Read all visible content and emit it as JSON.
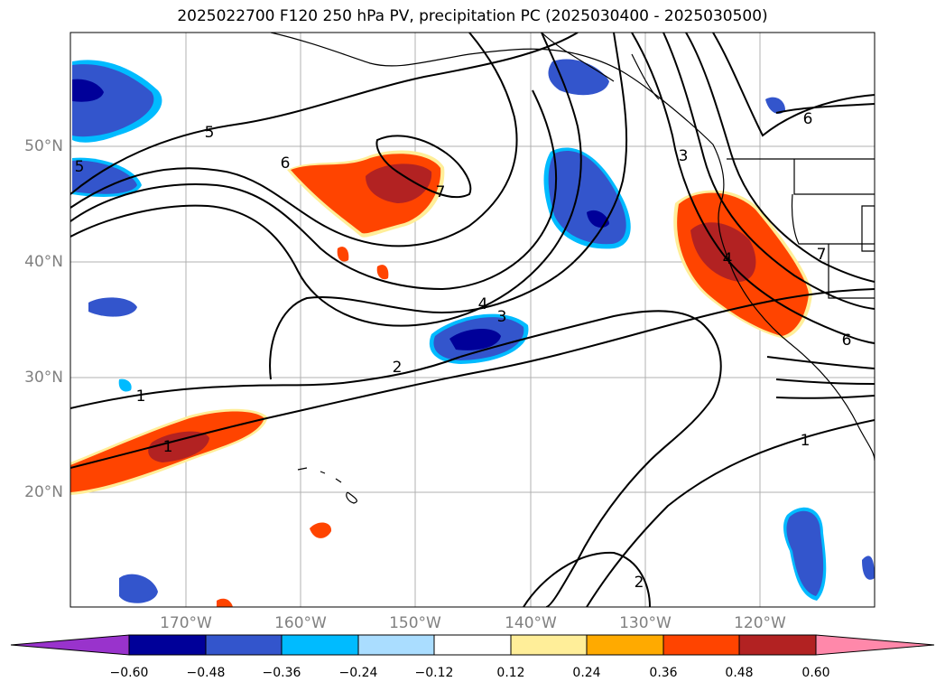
{
  "title": "2025022700 F120 250 hPa PV, precipitation PC (2025030400 - 2025030500)",
  "map": {
    "lat_ticks": [
      "50°N",
      "40°N",
      "30°N",
      "20°N"
    ],
    "lon_ticks": [
      "170°W",
      "160°W",
      "150°W",
      "140°W",
      "130°W",
      "120°W"
    ],
    "contour_labels": [
      "5",
      "6",
      "7",
      "4",
      "3",
      "2",
      "1",
      "1",
      "1",
      "2",
      "3",
      "4",
      "6",
      "7",
      "6",
      "5"
    ]
  },
  "colorbar": {
    "ticks": [
      "−0.60",
      "−0.48",
      "−0.36",
      "−0.24",
      "−0.12",
      "0.12",
      "0.24",
      "0.36",
      "0.48",
      "0.60"
    ],
    "colors": [
      "#9933cc",
      "#000099",
      "#3355cc",
      "#00bbff",
      "#aaddff",
      "#ffffff",
      "#ffee99",
      "#ffaa00",
      "#ff4400",
      "#b22222",
      "#ff88aa"
    ]
  }
}
